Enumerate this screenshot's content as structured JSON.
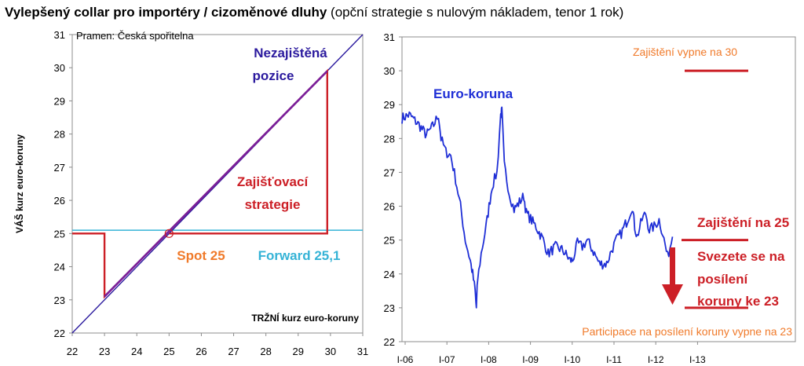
{
  "header": {
    "title_bold": "Vylepšený collar pro importéry / cizoměnové dluhy",
    "title_rest": " (opční strategie s nulovým nákladem, tenor 1 rok)"
  },
  "colors": {
    "unhedged": "#2b1a9e",
    "strategy": "#cc1f26",
    "forward": "#35b3d6",
    "overlap": "#7a1f9a",
    "orange": "#f07a2a",
    "series": "#1f2fd6",
    "axis": "#8c8c8c"
  },
  "chart_data": [
    {
      "type": "line",
      "source": "Pramen: Česká spořitelna",
      "xlabel": "TRŽNÍ kurz euro-koruny",
      "ylabel": "VÁŠ kurz euro-koruny",
      "xlim": [
        22,
        31
      ],
      "ylim": [
        22,
        31
      ],
      "x_ticks": [
        "22",
        "23",
        "24",
        "25",
        "26",
        "27",
        "28",
        "29",
        "30",
        "31"
      ],
      "y_ticks": [
        "22",
        "23",
        "24",
        "25",
        "26",
        "27",
        "28",
        "29",
        "30",
        "31"
      ],
      "series": [
        {
          "name": "Nezajištěná pozice",
          "label_lines": [
            "Nezajištěná",
            "pozice"
          ],
          "points": [
            [
              22,
              22
            ],
            [
              31,
              31
            ]
          ]
        },
        {
          "name": "Zajišťovací strategie",
          "label_lines": [
            "Zajišťovací",
            "strategie"
          ],
          "points": [
            [
              22,
              25
            ],
            [
              23,
              25
            ],
            [
              23,
              23.1
            ],
            [
              29.9,
              29.9
            ],
            [
              29.9,
              25
            ],
            [
              25,
              25
            ],
            [
              25,
              25
            ]
          ]
        },
        {
          "name": "Forward 25,1",
          "points": [
            [
              22,
              25.1
            ],
            [
              31,
              25.1
            ]
          ]
        }
      ],
      "annotations": {
        "spot": {
          "label": "Spot 25",
          "x": 25,
          "y": 25
        },
        "forward": {
          "label": "Forward 25,1"
        }
      }
    },
    {
      "type": "line",
      "series_label": "Euro-koruna",
      "ylim": [
        22,
        31
      ],
      "y_ticks": [
        "22",
        "23",
        "24",
        "25",
        "26",
        "27",
        "28",
        "29",
        "30",
        "31"
      ],
      "x_ticks": [
        "I-06",
        "I-07",
        "I-08",
        "I-09",
        "I-10",
        "I-11",
        "I-12",
        "I-13"
      ],
      "series": [
        {
          "name": "Euro-koruna",
          "points": [
            [
              0,
              28.6
            ],
            [
              0.3,
              28.7
            ],
            [
              0.7,
              28.4
            ],
            [
              1.0,
              28.1
            ],
            [
              1.3,
              28.4
            ],
            [
              1.5,
              28.7
            ],
            [
              1.6,
              28.0
            ],
            [
              1.8,
              27.6
            ],
            [
              2.0,
              27.5
            ],
            [
              2.2,
              26.8
            ],
            [
              2.4,
              26.0
            ],
            [
              2.6,
              25.0
            ],
            [
              2.8,
              24.4
            ],
            [
              2.9,
              24.0
            ],
            [
              3.0,
              23.5
            ],
            [
              3.05,
              23.0
            ],
            [
              3.1,
              23.8
            ],
            [
              3.25,
              24.6
            ],
            [
              3.45,
              25.4
            ],
            [
              3.7,
              26.6
            ],
            [
              3.9,
              27.0
            ],
            [
              4.05,
              28.7
            ],
            [
              4.1,
              28.8
            ],
            [
              4.2,
              27.2
            ],
            [
              4.4,
              26.4
            ],
            [
              4.6,
              25.9
            ],
            [
              5.0,
              26.3
            ],
            [
              5.1,
              25.8
            ],
            [
              5.5,
              25.4
            ],
            [
              5.8,
              25.0
            ],
            [
              6.0,
              24.6
            ],
            [
              6.3,
              24.8
            ],
            [
              6.6,
              24.7
            ],
            [
              6.9,
              24.4
            ],
            [
              7.0,
              24.4
            ],
            [
              7.2,
              24.9
            ],
            [
              7.4,
              24.8
            ],
            [
              7.6,
              25.0
            ],
            [
              7.9,
              24.6
            ],
            [
              8.1,
              24.3
            ],
            [
              8.4,
              24.3
            ],
            [
              8.6,
              24.7
            ],
            [
              8.8,
              25.0
            ],
            [
              9.0,
              25.2
            ],
            [
              9.25,
              25.6
            ],
            [
              9.45,
              26.0
            ],
            [
              9.55,
              25.4
            ],
            [
              9.65,
              25.1
            ],
            [
              9.85,
              25.6
            ],
            [
              10.0,
              25.8
            ],
            [
              10.15,
              25.3
            ],
            [
              10.35,
              25.4
            ],
            [
              10.55,
              25.6
            ],
            [
              10.7,
              25.2
            ],
            [
              10.9,
              24.5
            ],
            [
              11.1,
              25.1
            ]
          ]
        }
      ],
      "x_index_range": [
        0,
        12
      ],
      "levels": [
        {
          "label": "Zajištění vypne na 30",
          "y": 30
        },
        {
          "label": "Zajištění na 25",
          "y": 25
        },
        {
          "label": "Participace na posílení koruny vypne na 23",
          "y": 23
        }
      ],
      "note_lines": [
        "Svezete se na",
        "posílení",
        "koruny ke 23"
      ]
    }
  ]
}
